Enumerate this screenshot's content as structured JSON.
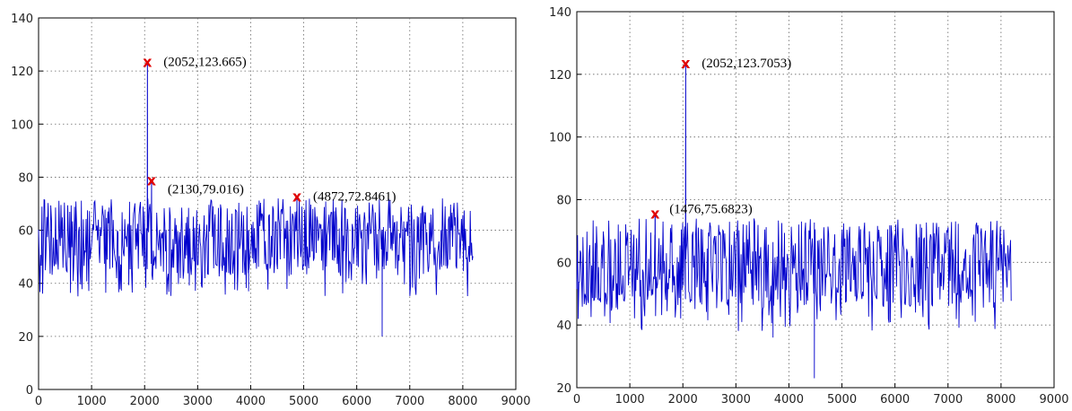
{
  "chart_data": [
    {
      "type": "line",
      "title": "",
      "xlabel": "",
      "ylabel": "",
      "xlim": [
        0,
        9000
      ],
      "ylim": [
        0,
        140
      ],
      "xticks": [
        "0",
        "1000",
        "2000",
        "3000",
        "4000",
        "5000",
        "6000",
        "7000",
        "8000",
        "9000"
      ],
      "yticks": [
        "0",
        "20",
        "40",
        "60",
        "80",
        "100",
        "120",
        "140"
      ],
      "grid": true,
      "line_color": "#0000cc",
      "marker_color": "#e00000",
      "signal": {
        "x_start": 0,
        "x_end": 8192,
        "baseline_mean": 60,
        "range_low": 35,
        "range_high": 72,
        "notable_dips": [
          [
            6480,
            20
          ],
          [
            3960,
            37
          ]
        ]
      },
      "peaks": [
        {
          "x": 2052,
          "y": 123.665,
          "label": "(2052,123.665)"
        },
        {
          "x": 2130,
          "y": 79.016,
          "label": "(2130,79.016)"
        },
        {
          "x": 4872,
          "y": 72.8461,
          "label": "(4872,72.8461)"
        }
      ]
    },
    {
      "type": "line",
      "title": "",
      "xlabel": "",
      "ylabel": "",
      "xlim": [
        0,
        9000
      ],
      "ylim": [
        20,
        140
      ],
      "xticks": [
        "0",
        "1000",
        "2000",
        "3000",
        "4000",
        "5000",
        "6000",
        "7000",
        "8000",
        "9000"
      ],
      "yticks": [
        "20",
        "40",
        "60",
        "80",
        "100",
        "120",
        "140"
      ],
      "grid": true,
      "line_color": "#0000cc",
      "marker_color": "#e00000",
      "signal": {
        "x_start": 0,
        "x_end": 8192,
        "baseline_mean": 61,
        "range_low": 38,
        "range_high": 74,
        "notable_dips": [
          [
            4480,
            23
          ],
          [
            3700,
            36
          ]
        ]
      },
      "peaks": [
        {
          "x": 2052,
          "y": 123.7053,
          "label": "(2052,123.7053)"
        },
        {
          "x": 1476,
          "y": 75.6823,
          "label": "(1476,75.6823)"
        }
      ]
    }
  ]
}
